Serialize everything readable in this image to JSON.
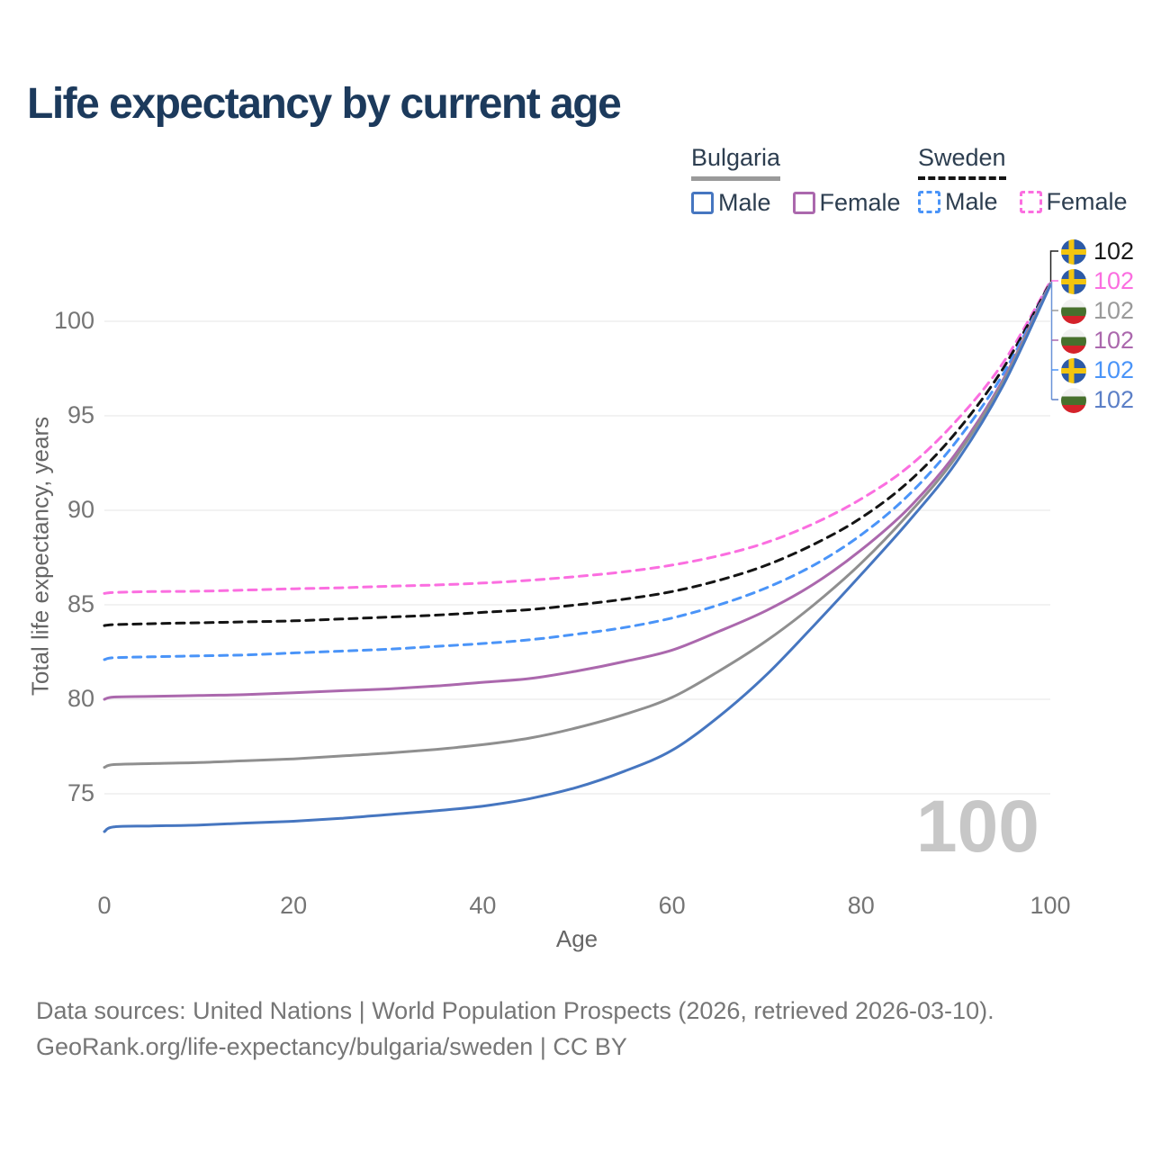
{
  "title": "Life expectancy by current age",
  "legend": {
    "groups": [
      {
        "title": "Bulgaria",
        "style": "solid",
        "items": [
          {
            "label": "Male",
            "color": "#4676c0"
          },
          {
            "label": "Female",
            "color": "#ab68ad"
          }
        ]
      },
      {
        "title": "Sweden",
        "style": "dashed",
        "items": [
          {
            "label": "Male",
            "color": "#4a94f8"
          },
          {
            "label": "Female",
            "color": "#fb6ee0"
          }
        ]
      }
    ]
  },
  "chart_data": {
    "type": "line",
    "title": "Life expectancy by current age",
    "xlabel": "Age",
    "ylabel": "Total life expectancy, years",
    "xlim": [
      0,
      100
    ],
    "ylim": [
      72,
      103
    ],
    "x_ticks": [
      0,
      20,
      40,
      60,
      80,
      100
    ],
    "y_ticks": [
      75,
      80,
      85,
      90,
      95,
      100
    ],
    "grid": "horizontal",
    "gridline_color": "#ededed",
    "x": [
      0,
      1,
      5,
      10,
      15,
      20,
      25,
      30,
      35,
      40,
      45,
      50,
      55,
      60,
      65,
      70,
      75,
      80,
      85,
      90,
      95,
      100
    ],
    "series": [
      {
        "name": "Sweden Female",
        "country": "sweden",
        "sex": "female",
        "style": "dashed",
        "color": "#fb6ee0",
        "values": [
          85.6,
          85.65,
          85.7,
          85.72,
          85.78,
          85.85,
          85.9,
          85.98,
          86.05,
          86.15,
          86.3,
          86.5,
          86.75,
          87.1,
          87.6,
          88.3,
          89.3,
          90.6,
          92.3,
          94.7,
          97.8,
          102.1
        ]
      },
      {
        "name": "Sweden Both sexes",
        "country": "sweden",
        "sex": "total",
        "style": "dashed",
        "color": "#141414",
        "values": [
          83.9,
          83.95,
          84.0,
          84.05,
          84.1,
          84.15,
          84.25,
          84.35,
          84.45,
          84.6,
          84.75,
          85.0,
          85.3,
          85.7,
          86.3,
          87.1,
          88.2,
          89.6,
          91.5,
          94.1,
          97.5,
          102.05
        ]
      },
      {
        "name": "Sweden Male",
        "country": "sweden",
        "sex": "male",
        "style": "dashed",
        "color": "#4a94f8",
        "values": [
          82.1,
          82.2,
          82.25,
          82.3,
          82.35,
          82.45,
          82.55,
          82.65,
          82.8,
          82.95,
          83.15,
          83.45,
          83.8,
          84.3,
          85.0,
          85.9,
          87.1,
          88.7,
          90.8,
          93.6,
          97.2,
          102.0
        ]
      },
      {
        "name": "Bulgaria Female",
        "country": "bulgaria",
        "sex": "female",
        "style": "solid",
        "color": "#ab68ad",
        "values": [
          80.0,
          80.12,
          80.15,
          80.2,
          80.25,
          80.35,
          80.45,
          80.55,
          80.7,
          80.9,
          81.1,
          81.5,
          82.0,
          82.6,
          83.6,
          84.7,
          86.1,
          87.9,
          90.1,
          93.0,
          96.9,
          102.0
        ]
      },
      {
        "name": "Bulgaria Both sexes",
        "country": "bulgaria",
        "sex": "total",
        "style": "solid",
        "color": "#8f8f8f",
        "values": [
          76.4,
          76.55,
          76.6,
          76.65,
          76.75,
          76.85,
          77.0,
          77.15,
          77.35,
          77.6,
          77.95,
          78.5,
          79.2,
          80.1,
          81.5,
          83.1,
          85.0,
          87.2,
          89.8,
          92.8,
          96.8,
          101.95
        ]
      },
      {
        "name": "Bulgaria Male",
        "country": "bulgaria",
        "sex": "male",
        "style": "solid",
        "color": "#4676c0",
        "values": [
          73.0,
          73.25,
          73.3,
          73.35,
          73.45,
          73.55,
          73.7,
          73.9,
          74.1,
          74.35,
          74.75,
          75.35,
          76.2,
          77.3,
          79.1,
          81.3,
          83.9,
          86.6,
          89.4,
          92.5,
          96.6,
          101.9
        ]
      }
    ]
  },
  "end_labels": [
    {
      "country": "sweden",
      "series": "Sweden Both sexes",
      "value": "102",
      "color": "#1a1a1a"
    },
    {
      "country": "sweden",
      "series": "Sweden Female",
      "value": "102",
      "color": "#fb6ee0"
    },
    {
      "country": "bulgaria",
      "series": "Bulgaria Both sexes",
      "value": "102",
      "color": "#9a9a9a"
    },
    {
      "country": "bulgaria",
      "series": "Bulgaria Female",
      "value": "102",
      "color": "#ab68ad"
    },
    {
      "country": "sweden",
      "series": "Sweden Male",
      "value": "102",
      "color": "#4a94f8"
    },
    {
      "country": "bulgaria",
      "series": "Bulgaria Male",
      "value": "102",
      "color": "#5b7fc7"
    }
  ],
  "watermark": "100",
  "footer": {
    "line1": "Data sources: United Nations | World Population Prospects (2026, retrieved 2026-03-10).",
    "line2": "GeoRank.org/life-expectancy/bulgaria/sweden | CC BY"
  }
}
